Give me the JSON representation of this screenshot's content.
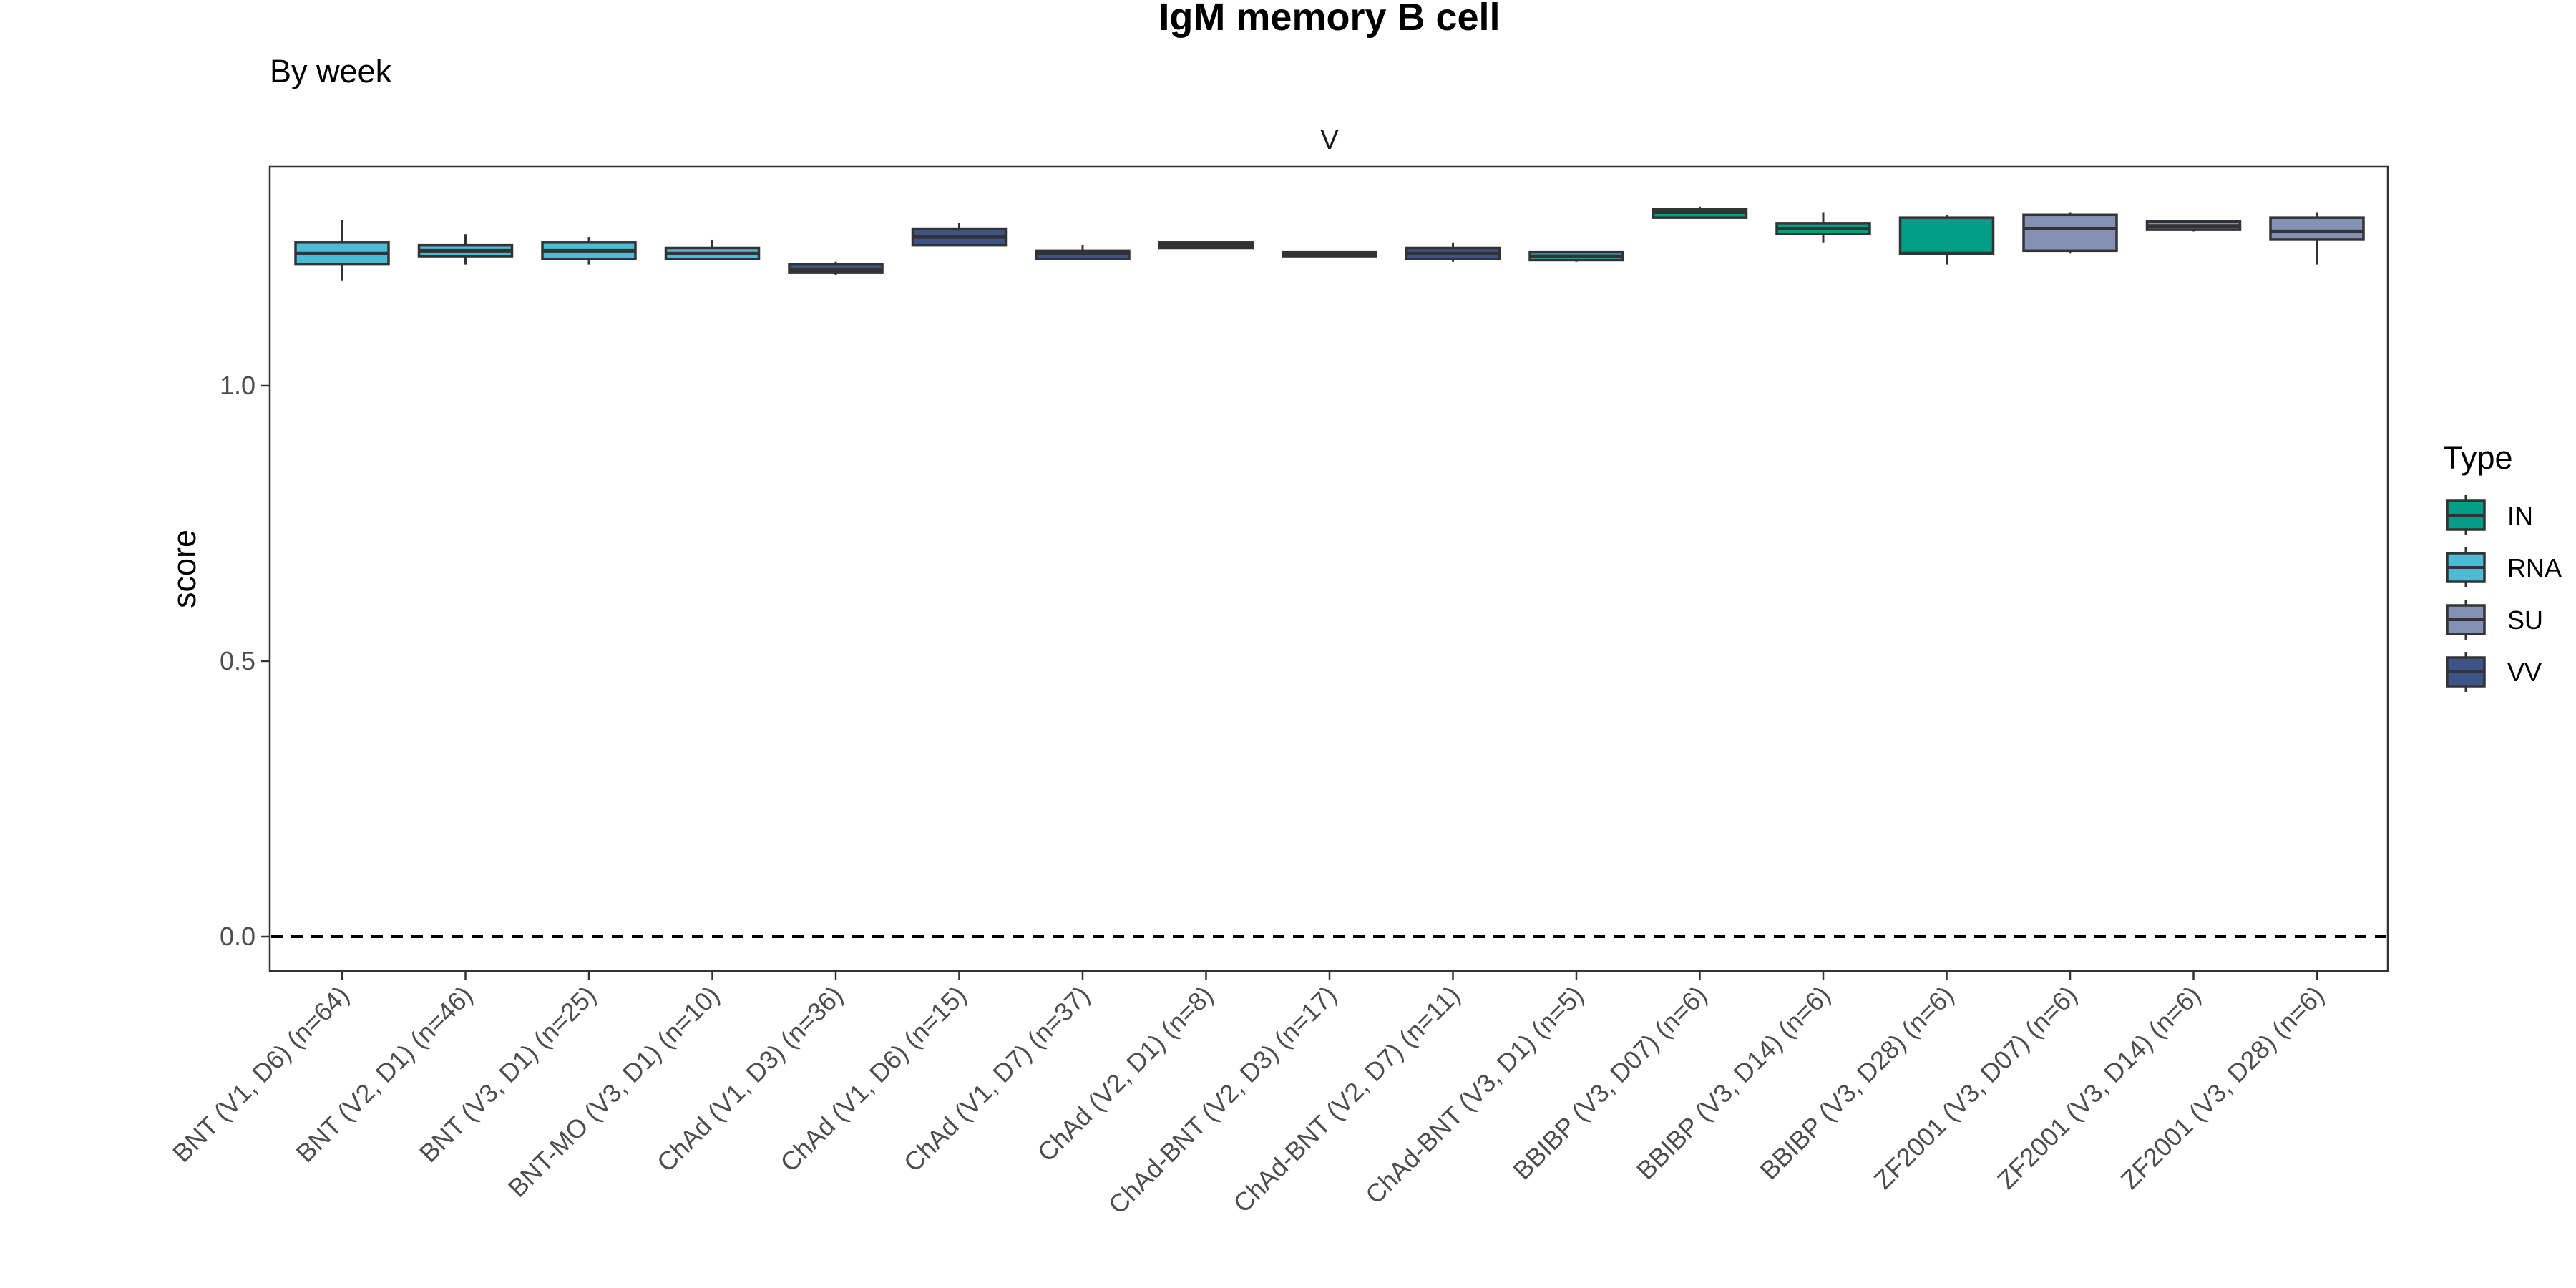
{
  "title": "IgM memory B cell",
  "subtitle": "By week",
  "chart_data": {
    "type": "boxplot",
    "facet_label": "V",
    "xlabel": "",
    "ylabel": "score",
    "ylim": [
      -0.05,
      1.41
    ],
    "yticks": [
      0.0,
      0.5,
      1.0
    ],
    "ytick_labels": [
      "0.0",
      "0.5",
      "1.0"
    ],
    "reference_line": {
      "y": 0.0,
      "style": "dashed"
    },
    "grid": false,
    "legend": {
      "title": "Type",
      "position": "right",
      "items": [
        {
          "label": "IN",
          "color": "#009E87"
        },
        {
          "label": "RNA",
          "color": "#4DBBD5"
        },
        {
          "label": "SU",
          "color": "#8491B4"
        },
        {
          "label": "VV",
          "color": "#3C5488"
        }
      ]
    },
    "categories": [
      {
        "label": "BNT (V1, D6) (n=64)",
        "type": "RNA",
        "whisker_low": 1.19,
        "q1": 1.22,
        "median": 1.24,
        "q3": 1.26,
        "whisker_high": 1.3
      },
      {
        "label": "BNT (V2, D1) (n=46)",
        "type": "RNA",
        "whisker_low": 1.22,
        "q1": 1.235,
        "median": 1.245,
        "q3": 1.255,
        "whisker_high": 1.275
      },
      {
        "label": "BNT (V3, D1) (n=25)",
        "type": "RNA",
        "whisker_low": 1.22,
        "q1": 1.23,
        "median": 1.245,
        "q3": 1.26,
        "whisker_high": 1.27
      },
      {
        "label": "BNT-MO (V3, D1) (n=10)",
        "type": "RNA",
        "whisker_low": 1.23,
        "q1": 1.23,
        "median": 1.24,
        "q3": 1.25,
        "whisker_high": 1.265
      },
      {
        "label": "ChAd (V1, D3) (n=36)",
        "type": "VV",
        "whisker_low": 1.2,
        "q1": 1.205,
        "median": 1.21,
        "q3": 1.22,
        "whisker_high": 1.225
      },
      {
        "label": "ChAd (V1, D6) (n=15)",
        "type": "VV",
        "whisker_low": 1.255,
        "q1": 1.255,
        "median": 1.27,
        "q3": 1.285,
        "whisker_high": 1.295
      },
      {
        "label": "ChAd (V1, D7) (n=37)",
        "type": "VV",
        "whisker_low": 1.23,
        "q1": 1.23,
        "median": 1.24,
        "q3": 1.245,
        "whisker_high": 1.255
      },
      {
        "label": "ChAd (V2, D1) (n=8)",
        "type": "VV",
        "whisker_low": 1.25,
        "q1": 1.25,
        "median": 1.255,
        "q3": 1.26,
        "whisker_high": 1.262
      },
      {
        "label": "ChAd-BNT (V2, D3) (n=17)",
        "type": "VV",
        "whisker_low": 1.235,
        "q1": 1.235,
        "median": 1.24,
        "q3": 1.242,
        "whisker_high": 1.243
      },
      {
        "label": "ChAd-BNT (V2, D7) (n=11)",
        "type": "VV",
        "whisker_low": 1.225,
        "q1": 1.23,
        "median": 1.24,
        "q3": 1.25,
        "whisker_high": 1.26
      },
      {
        "label": "ChAd-BNT (V3, D1) (n=5)",
        "type": "RNA",
        "whisker_low": 1.225,
        "q1": 1.228,
        "median": 1.235,
        "q3": 1.242,
        "whisker_high": 1.244
      },
      {
        "label": "BBIBP (V3, D07) (n=6)",
        "type": "IN",
        "whisker_low": 1.305,
        "q1": 1.305,
        "median": 1.315,
        "q3": 1.32,
        "whisker_high": 1.325
      },
      {
        "label": "BBIBP (V3, D14) (n=6)",
        "type": "IN",
        "whisker_low": 1.26,
        "q1": 1.275,
        "median": 1.285,
        "q3": 1.295,
        "whisker_high": 1.315
      },
      {
        "label": "BBIBP (V3, D28) (n=6)",
        "type": "IN",
        "whisker_low": 1.22,
        "q1": 1.24,
        "median": 1.24,
        "q3": 1.305,
        "whisker_high": 1.31
      },
      {
        "label": "ZF2001 (V3, D07) (n=6)",
        "type": "SU",
        "whisker_low": 1.24,
        "q1": 1.245,
        "median": 1.285,
        "q3": 1.31,
        "whisker_high": 1.315
      },
      {
        "label": "ZF2001 (V3, D14) (n=6)",
        "type": "SU",
        "whisker_low": 1.28,
        "q1": 1.283,
        "median": 1.29,
        "q3": 1.298,
        "whisker_high": 1.3
      },
      {
        "label": "ZF2001 (V3, D28) (n=6)",
        "type": "SU",
        "whisker_low": 1.22,
        "q1": 1.265,
        "median": 1.28,
        "q3": 1.305,
        "whisker_high": 1.315
      }
    ]
  }
}
